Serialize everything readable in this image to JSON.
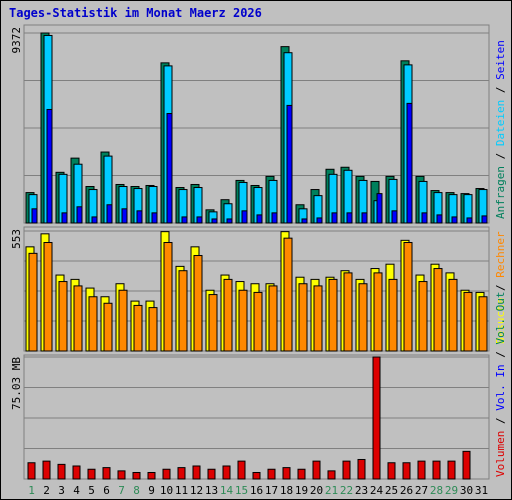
{
  "chart_data": {
    "type": "bar",
    "title": "Tages-Statistik im Monat Maerz 2026",
    "categories": [
      "1",
      "2",
      "3",
      "4",
      "5",
      "6",
      "7",
      "8",
      "9",
      "10",
      "11",
      "12",
      "13",
      "14",
      "15",
      "16",
      "17",
      "18",
      "19",
      "20",
      "21",
      "22",
      "23",
      "24",
      "25",
      "26",
      "27",
      "28",
      "29",
      "30",
      "31"
    ],
    "weekend_days": [
      "1",
      "7",
      "8",
      "14",
      "15",
      "21",
      "22",
      "28",
      "29"
    ],
    "colors": {
      "title": "#0000cc",
      "weekday_label": "#000000",
      "weekend_label": "#2e8b57",
      "anfragen": "#00805c",
      "dateien": "#00ccff",
      "seiten": "#0000ff",
      "besuche": "#ffff00",
      "rechner": "#ff8800",
      "volumen": "#dd0000"
    },
    "panels": [
      {
        "name": "top",
        "max_label": "9372",
        "max_value": 9372,
        "right_legend": [
          {
            "text": "Anfragen",
            "color": "#00805c"
          },
          {
            "text": " / ",
            "color": "#000000"
          },
          {
            "text": "Dateien",
            "color": "#00ccff"
          },
          {
            "text": " / ",
            "color": "#000000"
          },
          {
            "text": "Seiten",
            "color": "#0000ff"
          }
        ],
        "series": [
          {
            "name": "Anfragen",
            "values": [
              1500,
              9372,
              2500,
              3200,
              1800,
              3500,
              1900,
              1800,
              1850,
              7900,
              1750,
              1900,
              650,
              1150,
              2100,
              1850,
              2300,
              8700,
              900,
              1650,
              2650,
              2750,
              2300,
              2050,
              2300,
              8000,
              2300,
              1600,
              1500,
              1450,
              1700
            ]
          },
          {
            "name": "Dateien",
            "values": [
              1400,
              9250,
              2400,
              2900,
              1650,
              3300,
              1800,
              1700,
              1800,
              7750,
              1650,
              1750,
              550,
              950,
              2000,
              1750,
              2100,
              8400,
              700,
              1350,
              2400,
              2600,
              2100,
              1100,
              2150,
              7800,
              2050,
              1500,
              1400,
              1400,
              1650
            ]
          },
          {
            "name": "Seiten",
            "values": [
              700,
              5600,
              500,
              800,
              300,
              900,
              700,
              600,
              500,
              5400,
              300,
              300,
              200,
              200,
              600,
              400,
              500,
              5800,
              200,
              250,
              500,
              500,
              500,
              1450,
              600,
              5900,
              500,
              400,
              300,
              250,
              350
            ]
          }
        ]
      },
      {
        "name": "middle",
        "max_label": "553",
        "max_value": 553,
        "right_legend": [
          {
            "text": "Besuche",
            "color": "#ffff00"
          },
          {
            "text": " / ",
            "color": "#000000"
          },
          {
            "text": "Rechner",
            "color": "#ff8800"
          }
        ],
        "series": [
          {
            "name": "Besuche",
            "values": [
              480,
              540,
              350,
              330,
              290,
              250,
              310,
              230,
              230,
              550,
              390,
              480,
              280,
              350,
              320,
              310,
              310,
              550,
              340,
              330,
              340,
              370,
              330,
              380,
              400,
              510,
              350,
              400,
              360,
              280,
              270
            ]
          },
          {
            "name": "Rechner",
            "values": [
              450,
              500,
              320,
              300,
              250,
              220,
              280,
              210,
              200,
              500,
              370,
              440,
              260,
              330,
              280,
              270,
              300,
              520,
              310,
              300,
              330,
              360,
              310,
              360,
              330,
              500,
              320,
              380,
              330,
              270,
              250
            ]
          }
        ]
      },
      {
        "name": "bottom",
        "max_label": "75.03 MB",
        "max_value": 75.03,
        "right_legend": [
          {
            "text": "Volumen",
            "color": "#dd0000"
          },
          {
            "text": " / ",
            "color": "#000000"
          },
          {
            "text": "Vol. In",
            "color": "#0000ff"
          },
          {
            "text": " / ",
            "color": "#000000"
          },
          {
            "text": "Vol. Out",
            "color": "#00805c"
          }
        ],
        "series": [
          {
            "name": "Volumen",
            "values": [
              10,
              11,
              9,
              8,
              6,
              7,
              5,
              4,
              4,
              6,
              7,
              8,
              6,
              8,
              11,
              4,
              6,
              7,
              6,
              11,
              5,
              11,
              12,
              75.03,
              10,
              10,
              11,
              11,
              11,
              17,
              0
            ]
          }
        ]
      }
    ]
  }
}
